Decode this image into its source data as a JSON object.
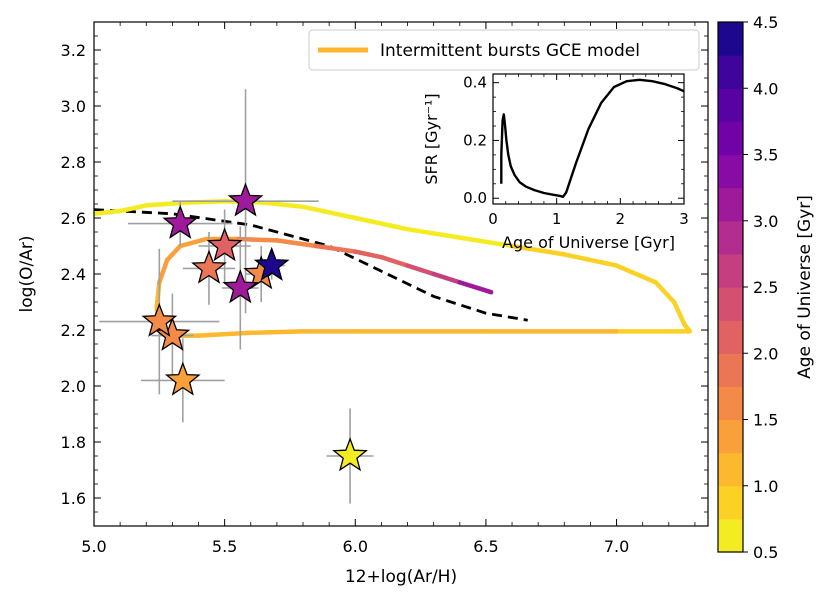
{
  "chart_data": {
    "type": "scatter",
    "xlabel": "12+log(Ar/H)",
    "ylabel": "log(O/Ar)",
    "xlim": [
      5.0,
      7.35
    ],
    "ylim": [
      1.5,
      3.3
    ],
    "xticks": [
      5.0,
      5.5,
      6.0,
      6.5,
      7.0
    ],
    "xtick_labels": [
      "5.0",
      "5.5",
      "6.0",
      "6.5",
      "7.0"
    ],
    "yticks": [
      1.6,
      1.8,
      2.0,
      2.2,
      2.4,
      2.6,
      2.8,
      3.0,
      3.2
    ],
    "ytick_labels": [
      "1.6",
      "1.8",
      "2.0",
      "2.2",
      "2.4",
      "2.6",
      "2.8",
      "3.0",
      "3.2"
    ],
    "legend": {
      "label": "Intermittent bursts GCE model",
      "color": "#FDB62B",
      "position": "top-right"
    },
    "colorbar": {
      "label": "Age of Universe [Gyr]",
      "range": [
        0.5,
        4.5
      ],
      "ticks": [
        0.5,
        1.0,
        1.5,
        2.0,
        2.5,
        3.0,
        3.5,
        4.0,
        4.5
      ],
      "tick_labels": [
        "0.5",
        "1.0",
        "1.5",
        "2.0",
        "2.5",
        "3.0",
        "3.5",
        "4.0",
        "4.5"
      ],
      "colormap": "plasma_r",
      "levels": 16
    },
    "points": [
      {
        "x": 5.98,
        "y": 1.75,
        "xerr": 0.09,
        "yerr_lo": 0.17,
        "yerr_hi": 0.17,
        "age": 0.55
      },
      {
        "x": 5.34,
        "y": 2.02,
        "xerr": 0.16,
        "yerr_lo": 0.15,
        "yerr_hi": 0.15,
        "age": 1.4
      },
      {
        "x": 5.3,
        "y": 2.18,
        "xerr": 0.08,
        "yerr_lo": 0.15,
        "yerr_hi": 0.15,
        "age": 1.55
      },
      {
        "x": 5.25,
        "y": 2.23,
        "xerr": 0.23,
        "yerr_lo": 0.26,
        "yerr_hi": 0.26,
        "age": 1.5
      },
      {
        "x": 5.44,
        "y": 2.42,
        "xerr": 0.1,
        "yerr_lo": 0.13,
        "yerr_hi": 0.13,
        "age": 1.8
      },
      {
        "x": 5.5,
        "y": 2.5,
        "xerr": 0.1,
        "yerr_lo": 0.13,
        "yerr_hi": 0.13,
        "age": 2.1
      },
      {
        "x": 5.64,
        "y": 2.4,
        "xerr": 0.06,
        "yerr_lo": 0.1,
        "yerr_hi": 0.1,
        "age": 1.5
      },
      {
        "x": 5.56,
        "y": 2.35,
        "xerr": 0.07,
        "yerr_lo": 0.22,
        "yerr_hi": 0.22,
        "age": 3.0
      },
      {
        "x": 5.68,
        "y": 2.43,
        "xerr": 0.05,
        "yerr_lo": 0.05,
        "yerr_hi": 0.05,
        "age": 4.45
      },
      {
        "x": 5.33,
        "y": 2.58,
        "xerr": 0.2,
        "yerr_lo": 0.08,
        "yerr_hi": 0.08,
        "age": 3.1
      },
      {
        "x": 5.58,
        "y": 2.66,
        "xerr": 0.28,
        "yerr_lo": 0.4,
        "yerr_hi": 0.4,
        "age": 3.0
      }
    ],
    "model_track": [
      {
        "x": 5.0,
        "y": 2.615,
        "age": 0.5
      },
      {
        "x": 5.1,
        "y": 2.625,
        "age": 0.52
      },
      {
        "x": 5.2,
        "y": 2.645,
        "age": 0.54
      },
      {
        "x": 5.35,
        "y": 2.655,
        "age": 0.56
      },
      {
        "x": 5.5,
        "y": 2.66,
        "age": 0.58
      },
      {
        "x": 5.65,
        "y": 2.655,
        "age": 0.6
      },
      {
        "x": 5.8,
        "y": 2.64,
        "age": 0.62
      },
      {
        "x": 6.0,
        "y": 2.6,
        "age": 0.65
      },
      {
        "x": 6.2,
        "y": 2.56,
        "age": 0.68
      },
      {
        "x": 6.4,
        "y": 2.53,
        "age": 0.71
      },
      {
        "x": 6.6,
        "y": 2.5,
        "age": 0.74
      },
      {
        "x": 6.8,
        "y": 2.47,
        "age": 0.77
      },
      {
        "x": 7.0,
        "y": 2.43,
        "age": 0.8
      },
      {
        "x": 7.15,
        "y": 2.37,
        "age": 0.83
      },
      {
        "x": 7.22,
        "y": 2.3,
        "age": 0.86
      },
      {
        "x": 7.26,
        "y": 2.22,
        "age": 0.9
      },
      {
        "x": 7.28,
        "y": 2.195,
        "age": 0.95
      },
      {
        "x": 7.0,
        "y": 2.195,
        "age": 1.0
      },
      {
        "x": 6.5,
        "y": 2.195,
        "age": 1.05
      },
      {
        "x": 6.0,
        "y": 2.195,
        "age": 1.1
      },
      {
        "x": 5.8,
        "y": 2.195,
        "age": 1.12
      },
      {
        "x": 5.6,
        "y": 2.19,
        "age": 1.14
      },
      {
        "x": 5.4,
        "y": 2.18,
        "age": 1.16
      },
      {
        "x": 5.3,
        "y": 2.18,
        "age": 1.18
      },
      {
        "x": 5.25,
        "y": 2.2,
        "age": 1.2
      },
      {
        "x": 5.24,
        "y": 2.28,
        "age": 1.22
      },
      {
        "x": 5.25,
        "y": 2.37,
        "age": 1.25
      },
      {
        "x": 5.28,
        "y": 2.45,
        "age": 1.3
      },
      {
        "x": 5.33,
        "y": 2.5,
        "age": 1.35
      },
      {
        "x": 5.43,
        "y": 2.525,
        "age": 1.4
      },
      {
        "x": 5.55,
        "y": 2.525,
        "age": 1.45
      },
      {
        "x": 5.7,
        "y": 2.52,
        "age": 1.55
      },
      {
        "x": 5.85,
        "y": 2.5,
        "age": 1.7
      },
      {
        "x": 6.0,
        "y": 2.48,
        "age": 1.9
      },
      {
        "x": 6.1,
        "y": 2.46,
        "age": 2.1
      },
      {
        "x": 6.2,
        "y": 2.43,
        "age": 2.3
      },
      {
        "x": 6.3,
        "y": 2.4,
        "age": 2.55
      },
      {
        "x": 6.4,
        "y": 2.37,
        "age": 2.85
      },
      {
        "x": 6.52,
        "y": 2.335,
        "age": 3.2
      }
    ],
    "dashed_reference": [
      {
        "x": 5.0,
        "y": 2.63
      },
      {
        "x": 5.3,
        "y": 2.615
      },
      {
        "x": 5.6,
        "y": 2.575
      },
      {
        "x": 5.9,
        "y": 2.5
      },
      {
        "x": 6.1,
        "y": 2.41
      },
      {
        "x": 6.3,
        "y": 2.32
      },
      {
        "x": 6.5,
        "y": 2.26
      },
      {
        "x": 6.66,
        "y": 2.235
      }
    ],
    "inset": {
      "type": "line",
      "xlabel": "Age of Universe [Gyr]",
      "ylabel": "SFR [Gyr⁻¹]",
      "xlim": [
        0,
        3.0
      ],
      "ylim": [
        -0.02,
        0.43
      ],
      "xticks": [
        0,
        1,
        2,
        3
      ],
      "xtick_labels": [
        "0",
        "1",
        "2",
        "3"
      ],
      "yticks": [
        0.0,
        0.2,
        0.4
      ],
      "ytick_labels": [
        "0.0",
        "0.2",
        "0.4"
      ],
      "series": [
        {
          "name": "SFR",
          "x": [
            0.13,
            0.13,
            0.15,
            0.17,
            0.19,
            0.21,
            0.24,
            0.28,
            0.34,
            0.42,
            0.52,
            0.65,
            0.8,
            0.95,
            1.05,
            1.1,
            1.15,
            1.3,
            1.5,
            1.7,
            1.9,
            2.1,
            2.3,
            2.5,
            2.7,
            2.9,
            3.0
          ],
          "y": [
            0.05,
            0.15,
            0.27,
            0.29,
            0.25,
            0.2,
            0.15,
            0.11,
            0.08,
            0.055,
            0.04,
            0.028,
            0.018,
            0.012,
            0.008,
            0.005,
            0.02,
            0.12,
            0.24,
            0.33,
            0.385,
            0.405,
            0.41,
            0.405,
            0.395,
            0.38,
            0.37
          ]
        }
      ]
    }
  }
}
